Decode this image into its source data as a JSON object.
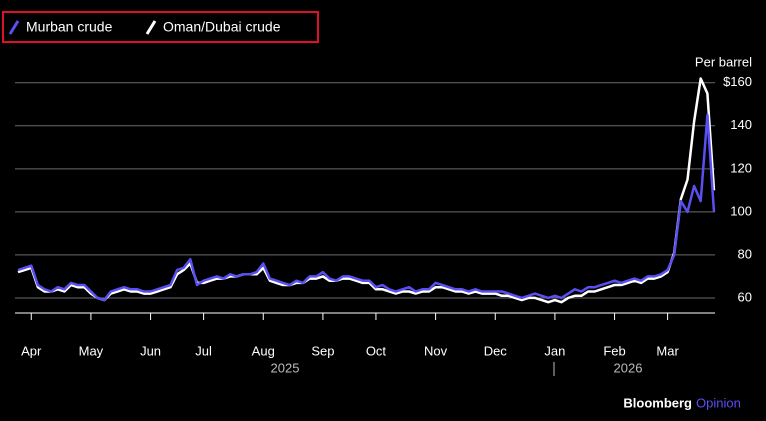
{
  "chart_data": {
    "type": "line",
    "y_label": "Per barrel",
    "categories": [
      null,
      null,
      "Apr",
      null,
      null,
      null,
      null,
      null,
      null,
      null,
      null,
      "May",
      null,
      null,
      null,
      null,
      null,
      null,
      null,
      null,
      "Jun",
      null,
      null,
      null,
      null,
      null,
      null,
      null,
      "Jul",
      null,
      null,
      null,
      null,
      null,
      null,
      null,
      null,
      "Aug",
      null,
      null,
      null,
      null,
      null,
      null,
      null,
      null,
      "Sep",
      null,
      null,
      null,
      null,
      null,
      null,
      null,
      "Oct",
      null,
      null,
      null,
      null,
      null,
      null,
      null,
      null,
      "Nov",
      null,
      null,
      null,
      null,
      null,
      null,
      null,
      null,
      "Dec",
      null,
      null,
      null,
      null,
      null,
      null,
      null,
      null,
      "Jan",
      null,
      null,
      null,
      null,
      null,
      null,
      null,
      null,
      "Feb",
      null,
      null,
      null,
      null,
      null,
      null,
      null,
      "Mar",
      null,
      null,
      null,
      null,
      null,
      null,
      null
    ],
    "x_year_labels": [
      "2025",
      "2026"
    ],
    "series": [
      {
        "name": "Murban crude",
        "color": "#5a4ff0",
        "values": [
          73,
          74,
          75,
          66,
          64,
          63,
          65,
          64,
          67,
          66,
          66,
          63,
          60,
          59,
          63,
          64,
          65,
          64,
          64,
          63,
          63,
          64,
          65,
          66,
          73,
          74,
          78,
          66,
          68,
          69,
          70,
          69,
          71,
          70,
          71,
          71,
          72,
          76,
          69,
          68,
          67,
          66,
          68,
          67,
          70,
          70,
          72,
          69,
          68,
          70,
          70,
          69,
          68,
          68,
          65,
          66,
          64,
          63,
          64,
          65,
          63,
          64,
          64,
          67,
          66,
          65,
          64,
          64,
          63,
          64,
          63,
          63,
          63,
          63,
          62,
          61,
          60,
          61,
          62,
          61,
          60,
          61,
          60,
          62,
          64,
          63,
          65,
          65,
          66,
          67,
          68,
          67,
          68,
          69,
          68,
          70,
          70,
          71,
          73,
          80,
          105,
          100,
          112,
          105,
          145,
          100
        ]
      },
      {
        "name": "Oman/Dubai crude",
        "color": "#ffffff",
        "values": [
          72,
          73,
          74,
          65,
          63,
          63,
          64,
          63,
          66,
          65,
          65,
          62,
          60,
          59,
          62,
          63,
          64,
          63,
          63,
          62,
          62,
          63,
          64,
          65,
          71,
          73,
          76,
          67,
          67,
          68,
          69,
          69,
          70,
          70,
          71,
          71,
          71,
          74,
          68,
          67,
          66,
          66,
          67,
          67,
          69,
          69,
          70,
          68,
          68,
          69,
          69,
          68,
          67,
          67,
          64,
          64,
          63,
          62,
          63,
          63,
          62,
          63,
          63,
          65,
          65,
          64,
          63,
          63,
          62,
          63,
          62,
          62,
          62,
          61,
          61,
          60,
          59,
          60,
          60,
          59,
          58,
          59,
          58,
          60,
          61,
          61,
          63,
          63,
          64,
          65,
          66,
          66,
          67,
          68,
          67,
          69,
          69,
          70,
          72,
          81,
          106,
          115,
          142,
          162,
          155,
          110
        ]
      }
    ],
    "ylim": [
      53,
      165
    ],
    "yticks": [
      60,
      80,
      100,
      120,
      140,
      {
        "value": 160,
        "label": "$160"
      }
    ],
    "grid": true,
    "legend": "top-left",
    "source": {
      "brand": "Bloomberg",
      "section": "Opinion"
    }
  }
}
